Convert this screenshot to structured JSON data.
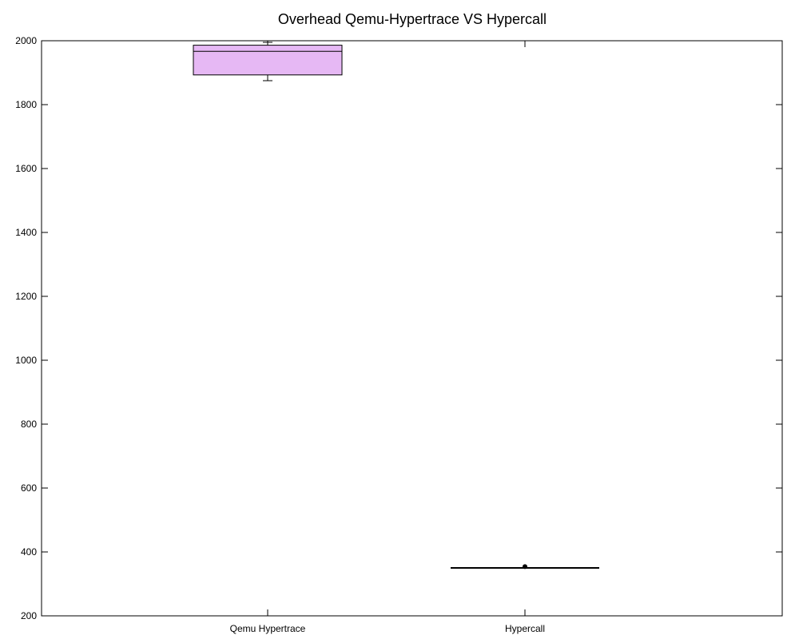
{
  "chart_data": {
    "type": "box",
    "title": "Overhead Qemu-Hypertrace VS Hypercall",
    "xlabel": "",
    "ylabel": "",
    "ylim": [
      200,
      2000
    ],
    "yticks": [
      200,
      400,
      600,
      800,
      1000,
      1200,
      1400,
      1600,
      1800,
      2000
    ],
    "grid": false,
    "categories": [
      "Qemu Hypertrace",
      "Hypercall"
    ],
    "boxes": [
      {
        "category": "Qemu Hypertrace",
        "whisker_low": 1875,
        "q1": 1893,
        "median": 1967,
        "q3": 1986,
        "whisker_high": 1995,
        "outliers": []
      },
      {
        "category": "Hypercall",
        "whisker_low": 350,
        "q1": 350,
        "median": 350,
        "q3": 350,
        "whisker_high": 350,
        "outliers": [
          354
        ]
      }
    ],
    "colors": {
      "box_fill": "#e6b8f4",
      "line": "#000000"
    }
  }
}
